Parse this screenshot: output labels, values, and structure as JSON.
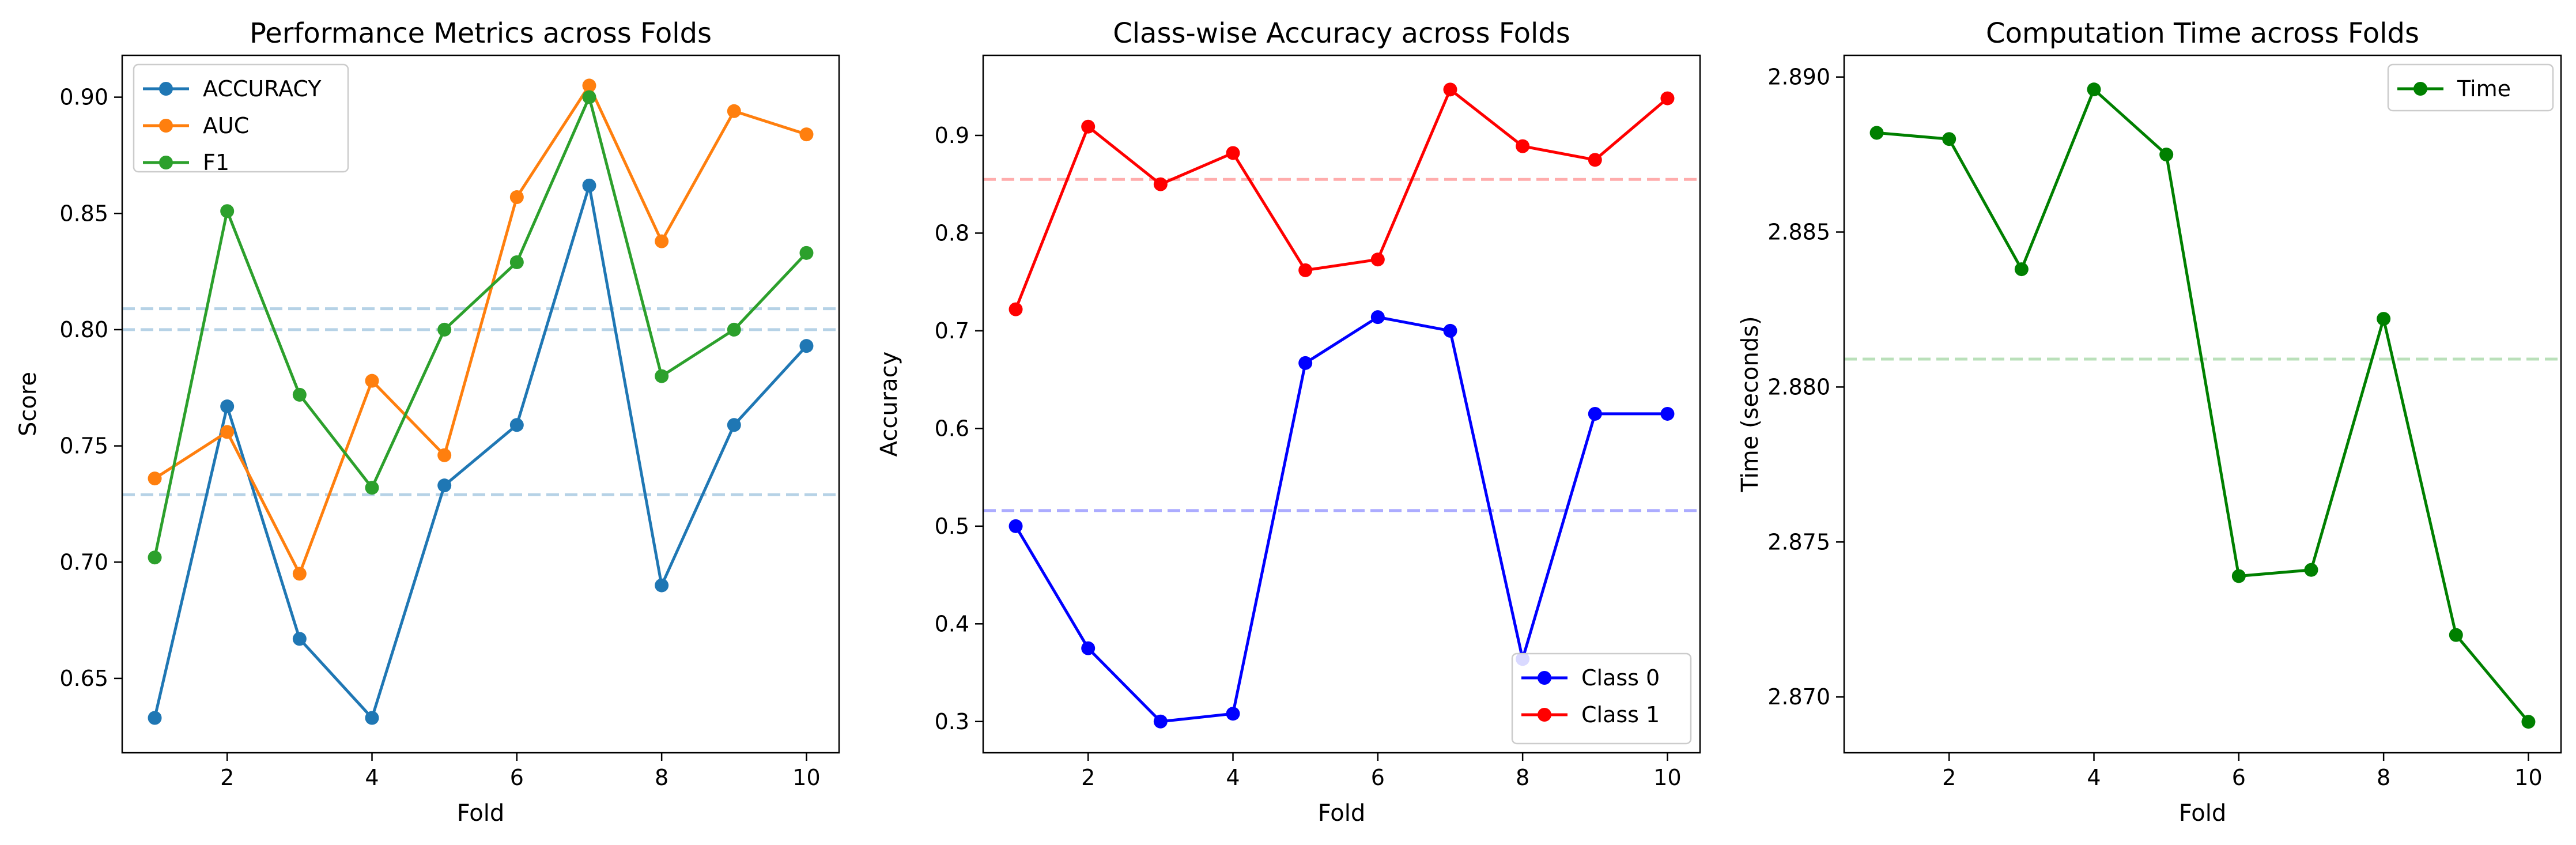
{
  "chart_data": [
    {
      "type": "line",
      "title": "Performance Metrics across Folds",
      "xlabel": "Fold",
      "ylabel": "Score",
      "x": [
        1,
        2,
        3,
        4,
        5,
        6,
        7,
        8,
        9,
        10
      ],
      "xlim": [
        0.55,
        10.45
      ],
      "ylim": [
        0.618,
        0.918
      ],
      "xticks": [
        2,
        4,
        6,
        8,
        10
      ],
      "yticks": [
        0.65,
        0.7,
        0.75,
        0.8,
        0.85,
        0.9
      ],
      "ytick_labels": [
        "0.65",
        "0.70",
        "0.75",
        "0.80",
        "0.85",
        "0.90"
      ],
      "grid": false,
      "legend": "top-left",
      "series": [
        {
          "name": "ACCURACY",
          "color": "#1f77b4",
          "values": [
            0.633,
            0.767,
            0.667,
            0.633,
            0.733,
            0.759,
            0.862,
            0.69,
            0.759,
            0.793
          ]
        },
        {
          "name": "AUC",
          "color": "#ff7f0e",
          "values": [
            0.736,
            0.756,
            0.695,
            0.778,
            0.746,
            0.857,
            0.905,
            0.838,
            0.894,
            0.884
          ]
        },
        {
          "name": "F1",
          "color": "#2ca02c",
          "values": [
            0.702,
            0.851,
            0.772,
            0.732,
            0.8,
            0.829,
            0.9,
            0.78,
            0.8,
            0.833
          ]
        }
      ],
      "reference_lines": [
        {
          "y": 0.729,
          "color": "#1f77b4"
        },
        {
          "y": 0.8,
          "color": "#1f77b4"
        },
        {
          "y": 0.809,
          "color": "#1f77b4"
        }
      ]
    },
    {
      "type": "line",
      "title": "Class-wise Accuracy across Folds",
      "xlabel": "Fold",
      "ylabel": "Accuracy",
      "x": [
        1,
        2,
        3,
        4,
        5,
        6,
        7,
        8,
        9,
        10
      ],
      "xlim": [
        0.55,
        10.45
      ],
      "ylim": [
        0.268,
        0.982
      ],
      "xticks": [
        2,
        4,
        6,
        8,
        10
      ],
      "yticks": [
        0.3,
        0.4,
        0.5,
        0.6,
        0.7,
        0.8,
        0.9
      ],
      "ytick_labels": [
        "0.3",
        "0.4",
        "0.5",
        "0.6",
        "0.7",
        "0.8",
        "0.9"
      ],
      "grid": false,
      "legend": "bottom-right",
      "series": [
        {
          "name": "Class 0",
          "color": "#0000ff",
          "values": [
            0.5,
            0.375,
            0.3,
            0.308,
            0.667,
            0.714,
            0.7,
            0.364,
            0.615,
            0.615
          ]
        },
        {
          "name": "Class 1",
          "color": "#ff0000",
          "values": [
            0.722,
            0.909,
            0.85,
            0.882,
            0.762,
            0.773,
            0.947,
            0.889,
            0.875,
            0.938
          ]
        }
      ],
      "reference_lines": [
        {
          "y": 0.516,
          "color": "#0000ff"
        },
        {
          "y": 0.855,
          "color": "#ff0000"
        }
      ]
    },
    {
      "type": "line",
      "title": "Computation Time across Folds",
      "xlabel": "Fold",
      "ylabel": "Time (seconds)",
      "x": [
        1,
        2,
        3,
        4,
        5,
        6,
        7,
        8,
        9,
        10
      ],
      "xlim": [
        0.55,
        10.45
      ],
      "ylim": [
        2.8682,
        2.8907
      ],
      "xticks": [
        2,
        4,
        6,
        8,
        10
      ],
      "yticks": [
        2.87,
        2.875,
        2.88,
        2.885,
        2.89
      ],
      "ytick_labels": [
        "2.870",
        "2.875",
        "2.880",
        "2.885",
        "2.890"
      ],
      "grid": false,
      "legend": "top-right",
      "series": [
        {
          "name": "Time",
          "color": "#008000",
          "values": [
            2.8882,
            2.888,
            2.8838,
            2.8896,
            2.8875,
            2.8739,
            2.8741,
            2.8822,
            2.872,
            2.8692
          ]
        }
      ],
      "reference_lines": [
        {
          "y": 2.8809,
          "color": "#2ca02c"
        }
      ]
    }
  ]
}
